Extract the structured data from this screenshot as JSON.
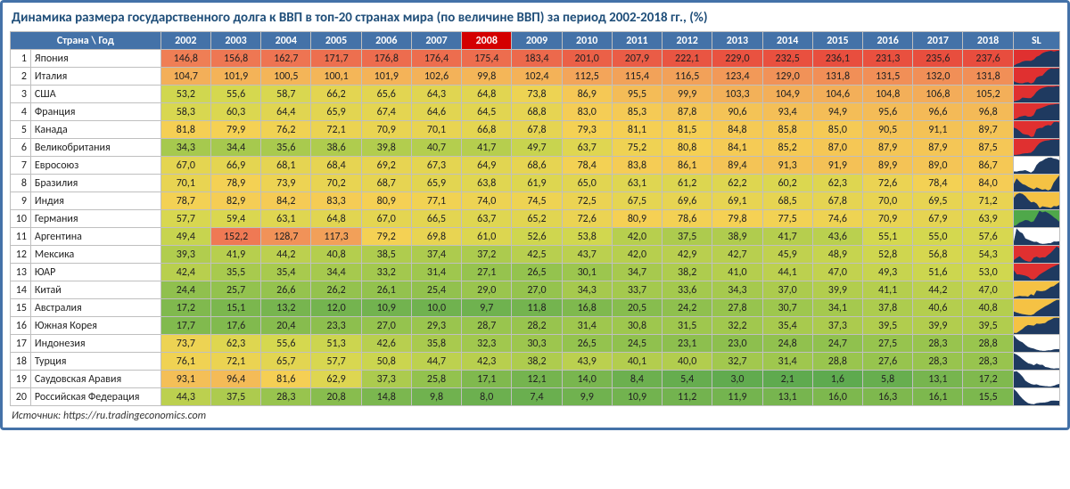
{
  "title": "Динамика размера государственного долга к ВВП в топ-20 странах мира (по величине ВВП) за период 2002-2018 гг., (%)",
  "source": "Источник: https://ru.tradingeconomics.com",
  "headers": {
    "country_year": "Страна \\ Год",
    "sl": "SL",
    "years": [
      "2002",
      "2003",
      "2004",
      "2005",
      "2006",
      "2007",
      "2008",
      "2009",
      "2010",
      "2011",
      "2012",
      "2013",
      "2014",
      "2015",
      "2016",
      "2017",
      "2018"
    ],
    "special_year": "2008"
  },
  "heatmap": {
    "min": 1.6,
    "max": 237.6,
    "stops": [
      {
        "v": 0,
        "c": "#5aa84f"
      },
      {
        "v": 30,
        "c": "#9cc64e"
      },
      {
        "v": 55,
        "c": "#d4d84f"
      },
      {
        "v": 80,
        "c": "#f5d154"
      },
      {
        "v": 110,
        "c": "#f3a85a"
      },
      {
        "v": 150,
        "c": "#ef7a55"
      },
      {
        "v": 240,
        "c": "#e84c3d"
      }
    ]
  },
  "spark_colors": {
    "red": {
      "bg": "#e03030",
      "fill": "#1f3a60"
    },
    "yellow": {
      "bg": "#f5c244",
      "fill": "#1f3a60"
    },
    "green": {
      "bg": "#4fa84a",
      "fill": "#1f3a60"
    },
    "white": {
      "bg": "#ffffff",
      "fill": "#1f3a60"
    }
  },
  "rows": [
    {
      "n": 1,
      "country": "Япония",
      "spark": "red",
      "v": [
        146.8,
        156.8,
        162.7,
        171.7,
        176.8,
        176.4,
        175.4,
        183.4,
        201.0,
        207.9,
        222.1,
        229.0,
        232.5,
        236.1,
        231.3,
        235.6,
        237.6
      ]
    },
    {
      "n": 2,
      "country": "Италия",
      "spark": "red",
      "v": [
        104.7,
        101.9,
        100.5,
        100.1,
        101.9,
        102.6,
        99.8,
        102.4,
        112.5,
        115.4,
        116.5,
        123.4,
        129.0,
        131.8,
        131.5,
        132.0,
        131.8
      ]
    },
    {
      "n": 3,
      "country": "США",
      "spark": "red",
      "v": [
        53.2,
        55.6,
        58.7,
        66.2,
        65.6,
        64.3,
        64.8,
        73.8,
        86.9,
        95.5,
        99.9,
        103.3,
        104.9,
        104.6,
        104.8,
        106.8,
        105.2
      ]
    },
    {
      "n": 4,
      "country": "Франция",
      "spark": "red",
      "v": [
        58.3,
        60.3,
        64.4,
        65.9,
        67.4,
        64.6,
        64.5,
        68.8,
        83.0,
        85.3,
        87.8,
        90.6,
        93.4,
        94.9,
        95.6,
        96.6,
        96.8
      ]
    },
    {
      "n": 5,
      "country": "Канада",
      "spark": "red",
      "v": [
        81.8,
        79.9,
        76.2,
        72.1,
        70.9,
        70.1,
        66.8,
        67.8,
        79.3,
        81.1,
        81.5,
        84.8,
        85.8,
        85.0,
        90.5,
        91.1,
        89.7
      ]
    },
    {
      "n": 6,
      "country": "Великобритания",
      "spark": "red",
      "v": [
        34.3,
        34.4,
        35.6,
        38.6,
        39.8,
        40.7,
        41.7,
        49.7,
        63.7,
        75.2,
        80.8,
        84.1,
        85.2,
        87.0,
        87.9,
        87.9,
        87.5
      ]
    },
    {
      "n": 7,
      "country": "Евросоюз",
      "spark": "white",
      "v": [
        67.0,
        66.9,
        68.1,
        68.4,
        69.2,
        67.3,
        64.9,
        68.6,
        78.4,
        83.8,
        86.1,
        89.4,
        91.3,
        91.9,
        89.9,
        89.0,
        86.7
      ]
    },
    {
      "n": 8,
      "country": "Бразилия",
      "spark": "yellow",
      "v": [
        70.1,
        78.9,
        73.9,
        70.2,
        68.7,
        65.9,
        63.8,
        61.9,
        65.0,
        63.1,
        61.2,
        62.2,
        60.2,
        62.3,
        72.6,
        78.4,
        84.0
      ]
    },
    {
      "n": 9,
      "country": "Индия",
      "spark": "yellow",
      "v": [
        78.7,
        82.9,
        84.2,
        83.3,
        80.9,
        77.1,
        74.0,
        74.5,
        72.5,
        67.5,
        69.6,
        69.1,
        68.5,
        67.8,
        70.0,
        69.5,
        71.2
      ]
    },
    {
      "n": 10,
      "country": "Германия",
      "spark": "green",
      "v": [
        57.7,
        59.4,
        63.1,
        64.8,
        67.0,
        66.5,
        63.7,
        65.2,
        72.6,
        80.9,
        78.6,
        79.8,
        77.5,
        74.6,
        70.9,
        67.9,
        63.9
      ]
    },
    {
      "n": 11,
      "country": "Аргентина",
      "spark": "white",
      "v": [
        49.4,
        152.2,
        128.7,
        117.3,
        79.2,
        69.8,
        61.0,
        52.6,
        53.8,
        42.0,
        37.5,
        38.9,
        41.7,
        43.6,
        55.1,
        55.0,
        57.6
      ]
    },
    {
      "n": 12,
      "country": "Мексика",
      "spark": "red",
      "v": [
        39.3,
        41.9,
        44.2,
        40.8,
        38.5,
        37.4,
        37.2,
        42.5,
        43.7,
        42.0,
        42.9,
        42.7,
        45.9,
        48.9,
        52.8,
        56.8,
        54.3
      ]
    },
    {
      "n": 13,
      "country": "ЮАР",
      "spark": "red",
      "v": [
        42.4,
        35.5,
        35.4,
        34.4,
        33.2,
        31.4,
        27.1,
        26.5,
        30.1,
        34.7,
        38.2,
        41.0,
        44.1,
        47.0,
        49.3,
        51.6,
        53.0
      ]
    },
    {
      "n": 14,
      "country": "Китай",
      "spark": "yellow",
      "v": [
        24.4,
        25.7,
        26.6,
        26.2,
        26.1,
        25.4,
        29.0,
        27.0,
        34.3,
        33.7,
        33.6,
        34.3,
        37.0,
        39.9,
        41.1,
        44.2,
        47.0
      ]
    },
    {
      "n": 15,
      "country": "Австралия",
      "spark": "yellow",
      "v": [
        17.2,
        15.1,
        13.2,
        12.0,
        10.9,
        10.0,
        9.7,
        11.8,
        16.8,
        20.5,
        24.2,
        27.8,
        30.7,
        34.1,
        37.8,
        40.6,
        40.8
      ]
    },
    {
      "n": 16,
      "country": "Южная Корея",
      "spark": "yellow",
      "v": [
        17.7,
        17.6,
        20.4,
        23.3,
        27.0,
        29.3,
        28.7,
        28.2,
        31.4,
        30.8,
        31.5,
        32.2,
        35.4,
        37.3,
        39.5,
        39.9,
        39.5
      ]
    },
    {
      "n": 17,
      "country": "Индонезия",
      "spark": "white",
      "v": [
        73.7,
        62.3,
        55.6,
        51.3,
        42.6,
        35.8,
        32.3,
        30.3,
        26.5,
        24.5,
        23.1,
        23.0,
        24.8,
        24.7,
        27.5,
        28.3,
        28.8
      ]
    },
    {
      "n": 18,
      "country": "Турция",
      "spark": "white",
      "v": [
        76.1,
        72.1,
        65.7,
        57.7,
        50.8,
        44.7,
        42.3,
        38.2,
        43.9,
        40.1,
        40.0,
        32.7,
        31.4,
        28.8,
        27.6,
        28.3,
        28.3
      ]
    },
    {
      "n": 19,
      "country": "Саудовская Аравия",
      "spark": "white",
      "v": [
        93.1,
        96.4,
        81.6,
        62.9,
        37.3,
        25.8,
        17.1,
        12.1,
        14.0,
        8.4,
        5.4,
        3.0,
        2.1,
        1.6,
        5.8,
        13.1,
        17.2
      ]
    },
    {
      "n": 20,
      "country": "Российская Федерация",
      "spark": "white",
      "v": [
        44.3,
        37.5,
        28.3,
        20.8,
        14.8,
        9.8,
        8.0,
        7.4,
        9.9,
        10.9,
        11.2,
        11.9,
        13.1,
        16.0,
        16.3,
        16.1,
        15.5
      ]
    }
  ]
}
